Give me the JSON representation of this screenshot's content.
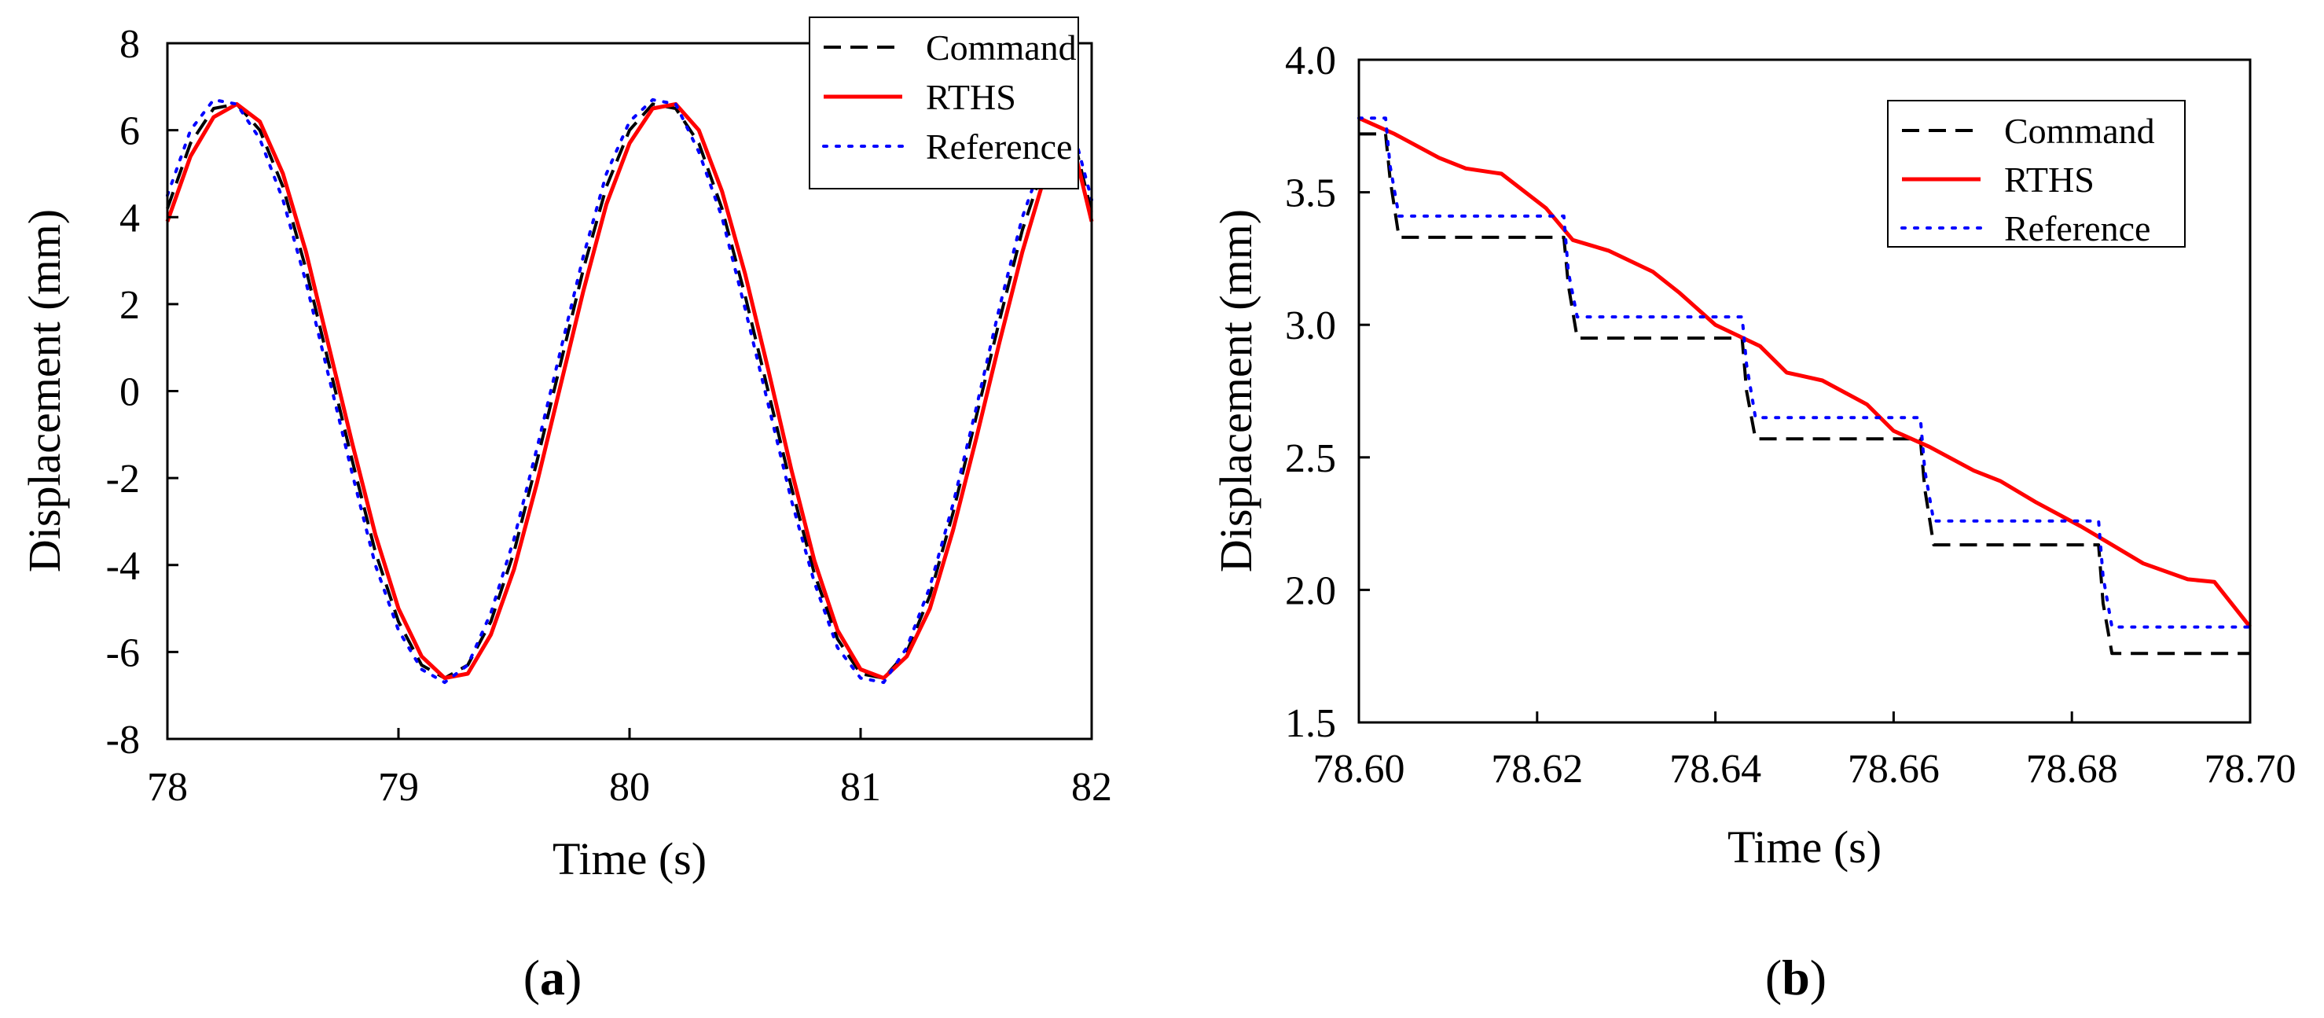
{
  "chart_data": [
    {
      "panel": "a",
      "type": "line",
      "xlabel": "Time (s)",
      "ylabel": "Displacement (mm)",
      "xlim": [
        78,
        82
      ],
      "ylim": [
        -8,
        8
      ],
      "xticks": [
        78,
        79,
        80,
        81,
        82
      ],
      "yticks": [
        -8,
        -6,
        -4,
        -2,
        0,
        2,
        4,
        6,
        8
      ],
      "xtick_labels": [
        "78",
        "79",
        "80",
        "81",
        "82"
      ],
      "ytick_labels": [
        "-8",
        "-6",
        "-4",
        "-2",
        "0",
        "2",
        "4",
        "6",
        "8"
      ],
      "grid": false,
      "legend_position": "top-right",
      "series": [
        {
          "name": "Command",
          "style": "dashed",
          "color": "#000000",
          "x": [
            78.0,
            78.1,
            78.2,
            78.3,
            78.4,
            78.5,
            78.6,
            78.7,
            78.8,
            78.9,
            79.0,
            79.1,
            79.2,
            79.3,
            79.4,
            79.5,
            79.6,
            79.7,
            79.8,
            79.9,
            80.0,
            80.1,
            80.2,
            80.3,
            80.4,
            80.5,
            80.6,
            80.7,
            80.8,
            80.9,
            81.0,
            81.1,
            81.2,
            81.3,
            81.4,
            81.5,
            81.6,
            81.7,
            81.8,
            81.9,
            82.0
          ],
          "y": [
            4.2,
            5.7,
            6.5,
            6.6,
            6.0,
            4.7,
            2.8,
            0.6,
            -1.6,
            -3.7,
            -5.3,
            -6.3,
            -6.6,
            -6.3,
            -5.3,
            -3.7,
            -1.6,
            0.6,
            2.8,
            4.7,
            6.0,
            6.6,
            6.5,
            5.7,
            4.2,
            2.2,
            0.0,
            -2.2,
            -4.2,
            -5.7,
            -6.5,
            -6.6,
            -6.0,
            -4.7,
            -2.8,
            -0.6,
            1.6,
            3.7,
            5.3,
            6.3,
            4.1
          ]
        },
        {
          "name": "RTHS",
          "style": "solid",
          "color": "#ff0000",
          "x": [
            78.0,
            78.1,
            78.2,
            78.3,
            78.4,
            78.5,
            78.6,
            78.7,
            78.8,
            78.9,
            79.0,
            79.1,
            79.2,
            79.3,
            79.4,
            79.5,
            79.6,
            79.7,
            79.8,
            79.9,
            80.0,
            80.1,
            80.2,
            80.3,
            80.4,
            80.5,
            80.6,
            80.7,
            80.8,
            80.9,
            81.0,
            81.1,
            81.2,
            81.3,
            81.4,
            81.5,
            81.6,
            81.7,
            81.8,
            81.9,
            82.0
          ],
          "y": [
            3.9,
            5.4,
            6.3,
            6.6,
            6.2,
            5.0,
            3.2,
            1.0,
            -1.2,
            -3.3,
            -5.0,
            -6.1,
            -6.6,
            -6.5,
            -5.6,
            -4.1,
            -2.1,
            0.1,
            2.3,
            4.3,
            5.7,
            6.5,
            6.6,
            6.0,
            4.6,
            2.7,
            0.5,
            -1.8,
            -3.9,
            -5.5,
            -6.4,
            -6.6,
            -6.1,
            -5.0,
            -3.2,
            -1.1,
            1.1,
            3.2,
            5.0,
            6.1,
            3.9
          ]
        },
        {
          "name": "Reference",
          "style": "dotted",
          "color": "#0000ff",
          "x": [
            78.0,
            78.1,
            78.2,
            78.3,
            78.4,
            78.5,
            78.6,
            78.7,
            78.8,
            78.9,
            79.0,
            79.1,
            79.2,
            79.3,
            79.4,
            79.5,
            79.6,
            79.7,
            79.8,
            79.9,
            80.0,
            80.1,
            80.2,
            80.3,
            80.4,
            80.5,
            80.6,
            80.7,
            80.8,
            80.9,
            81.0,
            81.1,
            81.2,
            81.3,
            81.4,
            81.5,
            81.6,
            81.7,
            81.8,
            81.9,
            82.0
          ],
          "y": [
            4.5,
            6.0,
            6.7,
            6.6,
            5.8,
            4.4,
            2.5,
            0.3,
            -1.9,
            -4.0,
            -5.5,
            -6.4,
            -6.7,
            -6.3,
            -5.1,
            -3.4,
            -1.3,
            0.9,
            3.1,
            5.0,
            6.2,
            6.7,
            6.6,
            5.5,
            4.0,
            1.9,
            -0.3,
            -2.5,
            -4.4,
            -5.9,
            -6.6,
            -6.7,
            -5.9,
            -4.5,
            -2.6,
            -0.4,
            1.9,
            4.0,
            5.5,
            6.4,
            4.4
          ]
        }
      ]
    },
    {
      "panel": "b",
      "type": "line",
      "xlabel": "Time (s)",
      "ylabel": "Displacement (mm)",
      "xlim": [
        78.6,
        78.7
      ],
      "ylim": [
        1.5,
        4.0
      ],
      "xticks": [
        78.6,
        78.62,
        78.64,
        78.66,
        78.68,
        78.7
      ],
      "yticks": [
        1.5,
        2.0,
        2.5,
        3.0,
        3.5,
        4.0
      ],
      "xtick_labels": [
        "78.60",
        "78.62",
        "78.64",
        "78.66",
        "78.68",
        "78.70"
      ],
      "ytick_labels": [
        "1.5",
        "2.0",
        "2.5",
        "3.0",
        "3.5",
        "4.0"
      ],
      "grid": false,
      "legend_position": "top-right",
      "series": [
        {
          "name": "Command",
          "style": "dashed",
          "color": "#000000",
          "x": [
            78.6,
            78.603,
            78.6035,
            78.6045,
            78.623,
            78.6235,
            78.6245,
            78.643,
            78.6435,
            78.6445,
            78.663,
            78.6635,
            78.6645,
            78.683,
            78.6835,
            78.6845,
            78.7
          ],
          "y": [
            3.72,
            3.72,
            3.55,
            3.33,
            3.33,
            3.15,
            2.95,
            2.95,
            2.75,
            2.57,
            2.57,
            2.38,
            2.17,
            2.17,
            1.95,
            1.76,
            1.76
          ]
        },
        {
          "name": "RTHS",
          "style": "solid",
          "color": "#ff0000",
          "x": [
            78.6,
            78.604,
            78.609,
            78.612,
            78.616,
            78.621,
            78.624,
            78.628,
            78.633,
            78.636,
            78.64,
            78.645,
            78.648,
            78.652,
            78.657,
            78.66,
            78.664,
            78.669,
            78.672,
            78.676,
            78.681,
            78.684,
            78.688,
            78.693,
            78.696,
            78.7
          ],
          "y": [
            3.78,
            3.72,
            3.63,
            3.59,
            3.57,
            3.44,
            3.32,
            3.28,
            3.2,
            3.12,
            3.0,
            2.92,
            2.82,
            2.79,
            2.7,
            2.6,
            2.54,
            2.45,
            2.41,
            2.33,
            2.24,
            2.18,
            2.1,
            2.04,
            2.03,
            1.86
          ]
        },
        {
          "name": "Reference",
          "style": "dotted",
          "color": "#0000ff",
          "x": [
            78.6,
            78.603,
            78.6035,
            78.6045,
            78.623,
            78.6235,
            78.6245,
            78.643,
            78.6435,
            78.6445,
            78.663,
            78.6635,
            78.6645,
            78.683,
            78.6835,
            78.6845,
            78.7
          ],
          "y": [
            3.78,
            3.78,
            3.6,
            3.41,
            3.41,
            3.2,
            3.03,
            3.03,
            2.85,
            2.65,
            2.65,
            2.45,
            2.26,
            2.26,
            2.05,
            1.86,
            1.86
          ]
        }
      ]
    }
  ],
  "panel_labels": [
    {
      "open": "(",
      "letter": "a",
      "close": ")"
    },
    {
      "open": "(",
      "letter": "b",
      "close": ")"
    }
  ]
}
